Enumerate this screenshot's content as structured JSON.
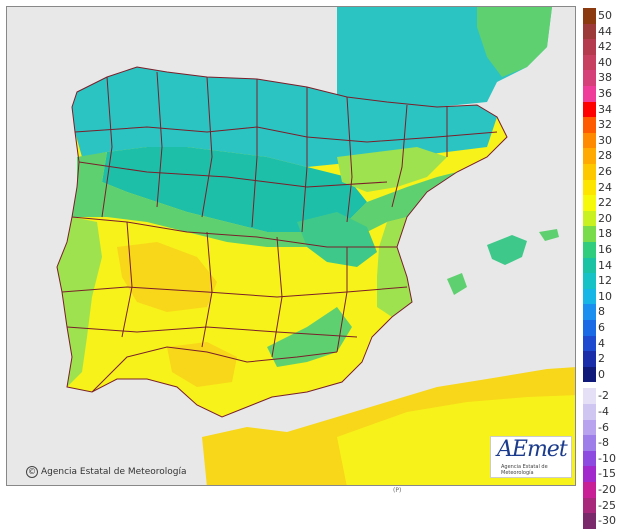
{
  "map": {
    "subject": "Iberian Peninsula and Balearic Islands temperature field",
    "sea_color": "#e8e8e8",
    "land_colors": {
      "t12": "#2cc3c3",
      "t14": "#1ebfa8",
      "t16": "#3ec98a",
      "t18": "#5fd070",
      "t20": "#9ee24f",
      "t22": "#d9ee2a",
      "t24": "#f7f219",
      "t26": "#f8d61a"
    },
    "border_color": "#7a1f2a"
  },
  "copyright": "Agencia Estatal de Meteorología",
  "copyright_symbol": "©",
  "logo": {
    "text": "AEmet",
    "subtitle": "Agencia Estatal de Meteorología"
  },
  "scale_note": "(P)",
  "legend": {
    "items": [
      {
        "label": "50",
        "color": "#8b3a0f"
      },
      {
        "label": "44",
        "color": "#9c3a3a"
      },
      {
        "label": "42",
        "color": "#b43b4e"
      },
      {
        "label": "40",
        "color": "#c8405f"
      },
      {
        "label": "38",
        "color": "#d6407a"
      },
      {
        "label": "36",
        "color": "#ef3c9a"
      },
      {
        "label": "34",
        "color": "#fe0000"
      },
      {
        "label": "32",
        "color": "#fe5a00"
      },
      {
        "label": "30",
        "color": "#fe8a00"
      },
      {
        "label": "28",
        "color": "#feaa00"
      },
      {
        "label": "26",
        "color": "#fec800"
      },
      {
        "label": "24",
        "color": "#fee500"
      },
      {
        "label": "22",
        "color": "#f6f90a"
      },
      {
        "label": "20",
        "color": "#c9f020"
      },
      {
        "label": "18",
        "color": "#79dd4b"
      },
      {
        "label": "16",
        "color": "#2fcd7d"
      },
      {
        "label": "14",
        "color": "#19c3a3"
      },
      {
        "label": "12",
        "color": "#16c2c6"
      },
      {
        "label": "10",
        "color": "#16b6e6"
      },
      {
        "label": "8",
        "color": "#1a8ff0"
      },
      {
        "label": "6",
        "color": "#1a6ae6"
      },
      {
        "label": "4",
        "color": "#1e4ad0"
      },
      {
        "label": "2",
        "color": "#1a2eaa"
      },
      {
        "label": "0",
        "color": "#101a78"
      },
      {
        "label": "-2",
        "color": "#e6e0f6"
      },
      {
        "label": "-4",
        "color": "#d0c6f2"
      },
      {
        "label": "-6",
        "color": "#b8a4ee"
      },
      {
        "label": "-8",
        "color": "#9e7ee8"
      },
      {
        "label": "-10",
        "color": "#8d4be0"
      },
      {
        "label": "-15",
        "color": "#a22acc"
      },
      {
        "label": "-20",
        "color": "#c81e96"
      },
      {
        "label": "-25",
        "color": "#a8287c"
      },
      {
        "label": "-30",
        "color": "#7a2a6a"
      }
    ]
  }
}
